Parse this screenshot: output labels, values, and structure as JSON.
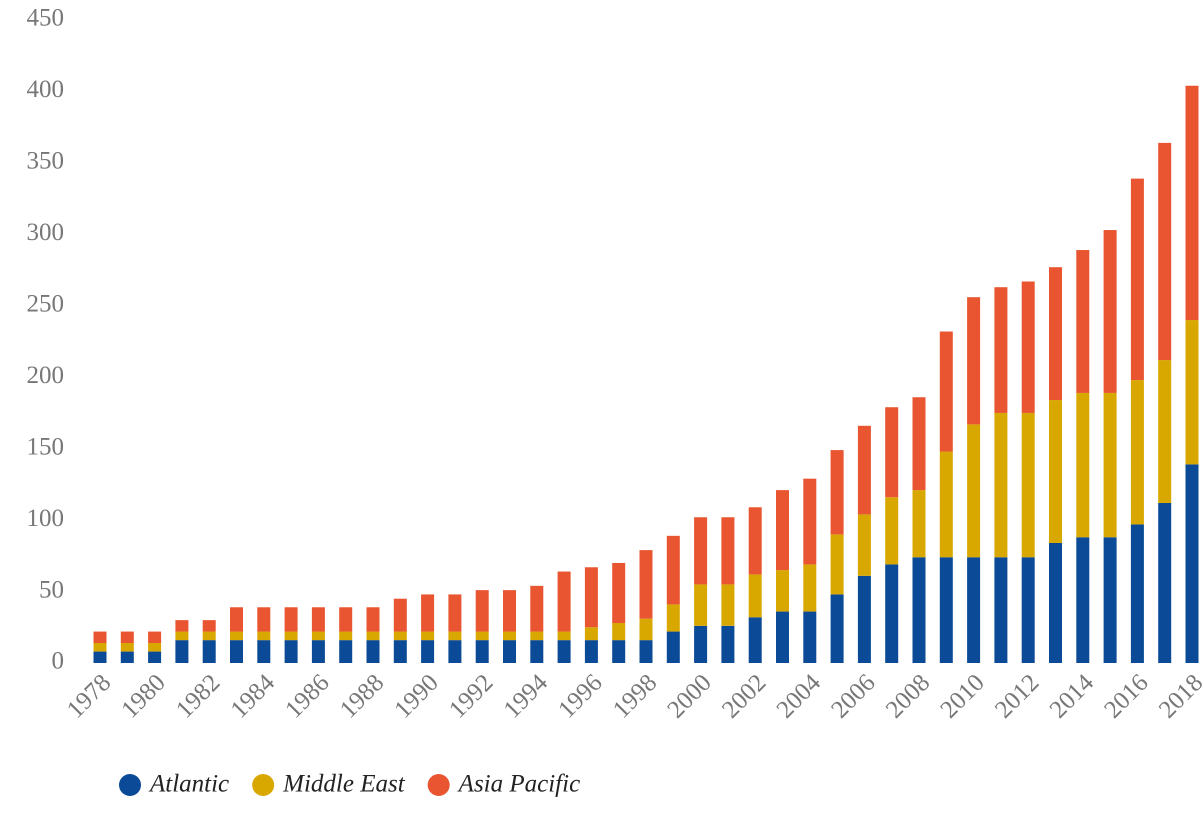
{
  "chart_data": {
    "type": "bar",
    "stacked": true,
    "categories": [
      "1978",
      null,
      "1980",
      null,
      "1982",
      null,
      "1984",
      null,
      "1986",
      null,
      "1988",
      null,
      "1990",
      null,
      "1992",
      null,
      "1994",
      null,
      "1996",
      null,
      "1998",
      null,
      "2000",
      null,
      "2002",
      null,
      "2004",
      null,
      "2006",
      null,
      "2008",
      null,
      "2010",
      null,
      "2012",
      null,
      "2014",
      null,
      "2016",
      null,
      "2018"
    ],
    "series": [
      {
        "name": "Atlantic",
        "color": "#0a4a96",
        "values": [
          8,
          8,
          8,
          16,
          16,
          16,
          16,
          16,
          16,
          16,
          16,
          16,
          16,
          16,
          16,
          16,
          16,
          16,
          16,
          16,
          16,
          22,
          26,
          26,
          32,
          36,
          36,
          48,
          61,
          69,
          74,
          74,
          74,
          74,
          74,
          84,
          88,
          88,
          97,
          112,
          139
        ]
      },
      {
        "name": "Middle East",
        "color": "#d9a800",
        "values": [
          6,
          6,
          6,
          6,
          6,
          6,
          6,
          6,
          6,
          6,
          6,
          6,
          6,
          6,
          6,
          6,
          6,
          6,
          9,
          12,
          15,
          19,
          29,
          29,
          30,
          29,
          33,
          42,
          43,
          47,
          47,
          74,
          93,
          101,
          101,
          100,
          101,
          101,
          101,
          100,
          101
        ]
      },
      {
        "name": "Asia Pacific",
        "color": "#e85530",
        "values": [
          8,
          8,
          8,
          8,
          8,
          17,
          17,
          17,
          17,
          17,
          17,
          23,
          26,
          26,
          29,
          29,
          32,
          42,
          42,
          42,
          48,
          48,
          47,
          47,
          47,
          56,
          60,
          59,
          62,
          63,
          65,
          84,
          89,
          88,
          92,
          93,
          100,
          114,
          141,
          152,
          164
        ]
      }
    ],
    "ylim": [
      0,
      450
    ],
    "yticks": [
      0,
      50,
      100,
      150,
      200,
      250,
      300,
      350,
      400,
      450
    ],
    "legend": "bottom-left"
  }
}
